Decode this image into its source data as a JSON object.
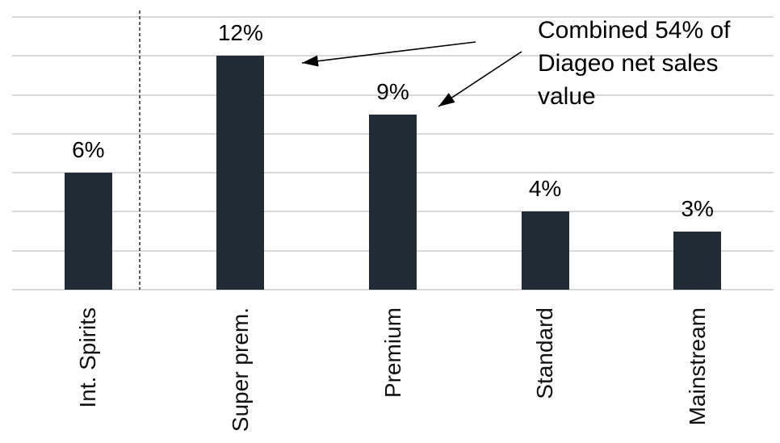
{
  "page": {
    "background": "#ffffff"
  },
  "colors": {
    "bar": "#202b36",
    "gridline": "#d9d9d9",
    "separator_line": "#1a1a1a",
    "arrow": "#000000",
    "text": "#000000",
    "axis_label_text": "#111111"
  },
  "chart_data": {
    "type": "bar",
    "categories": [
      "Int. Spirits",
      "Super prem.",
      "Premium",
      "Standard",
      "Mainstream"
    ],
    "values": [
      6,
      12,
      9,
      4,
      3
    ],
    "value_labels": [
      "6%",
      "12%",
      "9%",
      "4%",
      "3%"
    ],
    "title": "",
    "xlabel": "",
    "ylabel": "",
    "ylim": [
      0,
      14
    ],
    "gridline_step": 2,
    "grid": true,
    "legend": false,
    "y_axis_ticks_visible": false,
    "x_labels_rotated_degrees": 90,
    "separator": {
      "style": "dashed-vertical-line",
      "after_category": "Int. Spirits"
    },
    "annotation": {
      "text": "Combined 54% of Diageo net sales value",
      "arrow_targets": [
        "Super prem.",
        "Premium"
      ]
    }
  }
}
